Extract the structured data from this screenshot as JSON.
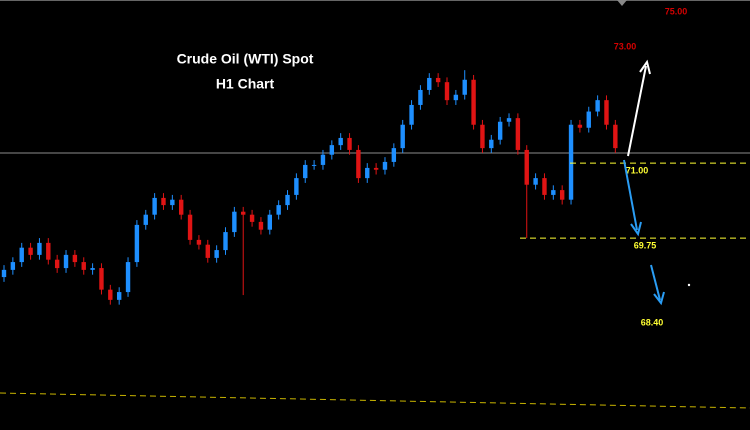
{
  "chart_data": {
    "type": "candlestick",
    "title": "Crude Oil (WTI) Spot",
    "subtitle": "H1 Chart",
    "ylim": [
      66.55,
      73.72
    ],
    "up_color": "#1e8fff",
    "down_color": "#e01414",
    "open": [
      69.1,
      69.22,
      69.35,
      69.59,
      69.47,
      69.67,
      69.39,
      69.25,
      69.47,
      69.35,
      69.22,
      69.25,
      68.89,
      68.72,
      68.85,
      69.35,
      69.97,
      70.14,
      70.42,
      70.3,
      70.39,
      70.14,
      69.72,
      69.64,
      69.42,
      69.55,
      69.85,
      70.19,
      70.14,
      70.02,
      69.89,
      70.14,
      70.3,
      70.47,
      70.75,
      70.97,
      70.97,
      71.14,
      71.3,
      71.42,
      71.22,
      70.75,
      70.92,
      70.89,
      71.02,
      71.25,
      71.64,
      71.97,
      72.22,
      72.42,
      72.35,
      72.05,
      72.14,
      72.39,
      71.64,
      71.25,
      71.39,
      71.69,
      71.75,
      71.22,
      70.64,
      70.75,
      70.47,
      70.55,
      70.39,
      71.64,
      71.59,
      71.86,
      72.05,
      71.64
    ],
    "high": [
      69.3,
      69.43,
      69.67,
      69.67,
      69.75,
      69.75,
      69.47,
      69.55,
      69.55,
      69.43,
      69.33,
      69.33,
      68.97,
      68.93,
      69.43,
      70.05,
      70.22,
      70.5,
      70.5,
      70.47,
      70.47,
      70.22,
      69.8,
      69.72,
      69.63,
      69.93,
      70.27,
      70.27,
      70.22,
      70.1,
      70.22,
      70.38,
      70.55,
      70.83,
      71.05,
      71.05,
      71.22,
      71.38,
      71.5,
      71.5,
      71.3,
      71.0,
      71.0,
      71.1,
      71.33,
      71.72,
      72.05,
      72.3,
      72.5,
      72.5,
      72.43,
      72.22,
      72.55,
      72.47,
      71.72,
      71.47,
      71.77,
      71.83,
      71.83,
      71.3,
      70.83,
      70.83,
      70.63,
      70.63,
      71.72,
      71.72,
      71.94,
      72.13,
      72.13,
      71.72
    ],
    "low": [
      69.02,
      69.14,
      69.27,
      69.39,
      69.39,
      69.31,
      69.17,
      69.17,
      69.27,
      69.14,
      69.14,
      68.81,
      68.64,
      68.64,
      68.77,
      69.27,
      69.89,
      70.06,
      70.22,
      70.22,
      70.06,
      69.64,
      69.56,
      69.34,
      69.34,
      69.47,
      69.77,
      68.8,
      69.94,
      69.81,
      69.81,
      70.06,
      70.22,
      70.39,
      70.67,
      70.89,
      70.89,
      71.06,
      71.22,
      71.14,
      70.67,
      70.67,
      70.81,
      70.81,
      70.94,
      71.17,
      71.56,
      71.89,
      72.14,
      72.27,
      71.97,
      71.97,
      72.06,
      71.56,
      71.17,
      71.17,
      71.31,
      71.61,
      71.14,
      69.75,
      70.56,
      70.39,
      70.39,
      70.31,
      70.31,
      71.51,
      71.51,
      71.78,
      71.56,
      71.17
    ],
    "close": [
      69.22,
      69.35,
      69.59,
      69.47,
      69.67,
      69.39,
      69.25,
      69.47,
      69.35,
      69.22,
      69.25,
      68.89,
      68.72,
      68.85,
      69.35,
      69.97,
      70.14,
      70.42,
      70.3,
      70.39,
      70.14,
      69.72,
      69.64,
      69.42,
      69.55,
      69.85,
      70.19,
      70.14,
      70.02,
      69.89,
      70.14,
      70.3,
      70.47,
      70.75,
      70.97,
      70.97,
      71.14,
      71.3,
      71.42,
      71.22,
      70.75,
      70.92,
      70.89,
      71.02,
      71.25,
      71.64,
      71.97,
      72.22,
      72.42,
      72.35,
      72.05,
      72.14,
      72.39,
      71.64,
      71.25,
      71.39,
      71.69,
      71.75,
      71.22,
      70.64,
      70.75,
      70.47,
      70.55,
      70.39,
      71.64,
      71.59,
      71.86,
      72.05,
      71.64,
      71.25
    ],
    "levels": [
      {
        "value": 75,
        "label": "75.00",
        "color": "#d40000",
        "line": false
      },
      {
        "value": 73,
        "label": "73.00",
        "color": "#d40000",
        "line": false
      },
      {
        "value": 71,
        "label": "71.00",
        "color": "#ffff33",
        "line": true
      },
      {
        "value": 69.75,
        "label": "69.75",
        "color": "#ffff33",
        "line": true
      },
      {
        "value": 68.4,
        "label": "68.40",
        "color": "#ffff33",
        "line": false
      }
    ]
  }
}
